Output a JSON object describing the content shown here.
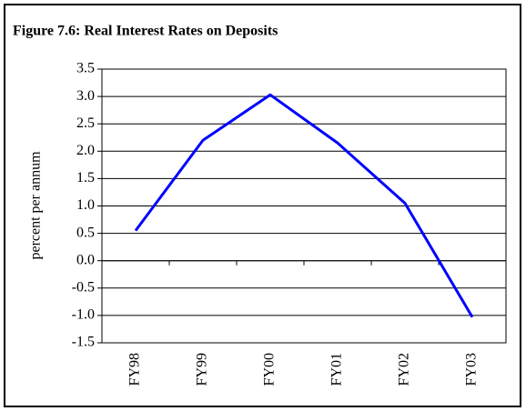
{
  "chart_data": {
    "type": "line",
    "title": "Figure 7.6: Real Interest Rates on Deposits",
    "y_label": "percent per annum",
    "categories": [
      "FY98",
      "FY99",
      "FY00",
      "FY01",
      "FY02",
      "FY03"
    ],
    "values": [
      0.55,
      2.2,
      3.03,
      2.15,
      1.05,
      -1.03
    ],
    "color": "#0000ff",
    "ylim": [
      -1.5,
      3.5
    ],
    "yticks": [
      -1.5,
      {
        "value": -1,
        "label": "-1.0"
      },
      -0.5,
      {
        "value": 0,
        "label": "0.0"
      },
      0.5,
      {
        "value": 1,
        "label": "1.0"
      },
      1.5,
      {
        "value": 2,
        "label": "2.0"
      },
      2.5,
      {
        "value": 3,
        "label": "3.0"
      },
      3.5
    ],
    "grid": true
  }
}
